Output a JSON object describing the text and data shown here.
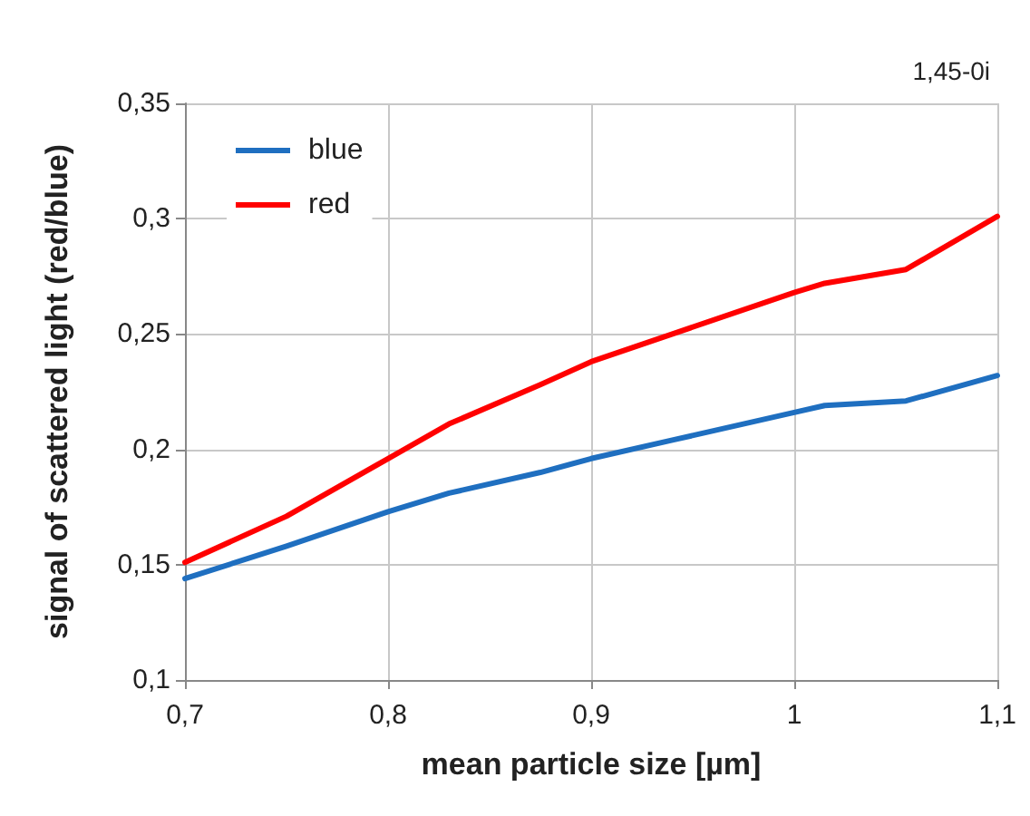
{
  "chart_data": {
    "type": "line",
    "xlabel": "mean particle size [µm]",
    "ylabel": "signal of scattered light (red/blue)",
    "annotations": [
      "1,45-0i"
    ],
    "series": [
      {
        "name": "blue",
        "color": "#1f6fc0",
        "x": [
          0.7,
          0.75,
          0.8,
          0.83,
          0.875,
          0.9,
          0.94,
          1.0,
          1.015,
          1.055,
          1.1
        ],
        "values": [
          0.144,
          0.158,
          0.173,
          0.181,
          0.19,
          0.196,
          0.204,
          0.216,
          0.219,
          0.221,
          0.232
        ]
      },
      {
        "name": "red",
        "color": "#ff0000",
        "x": [
          0.7,
          0.75,
          0.8,
          0.83,
          0.875,
          0.9,
          0.94,
          1.0,
          1.015,
          1.055,
          1.1
        ],
        "values": [
          0.151,
          0.171,
          0.196,
          0.211,
          0.228,
          0.238,
          0.25,
          0.268,
          0.272,
          0.278,
          0.301
        ]
      }
    ],
    "xlim": [
      0.7,
      1.1
    ],
    "xticks": [
      {
        "value": 0.7,
        "label": "0,7"
      },
      {
        "value": 0.8,
        "label": "0,8"
      },
      {
        "value": 0.9,
        "label": "0,9"
      },
      {
        "value": 1,
        "label": "1"
      },
      {
        "value": 1.1,
        "label": "1,1"
      }
    ],
    "ylim": [
      0.1,
      0.35
    ],
    "yticks": [
      {
        "value": 0.1,
        "label": "0,1"
      },
      {
        "value": 0.15,
        "label": "0,15"
      },
      {
        "value": 0.2,
        "label": "0,2"
      },
      {
        "value": 0.25,
        "label": "0,25"
      },
      {
        "value": 0.3,
        "label": "0,3"
      },
      {
        "value": 0.35,
        "label": "0,35"
      }
    ],
    "grid": true,
    "legend": "top left",
    "marker": "none",
    "line_style": "solid"
  }
}
